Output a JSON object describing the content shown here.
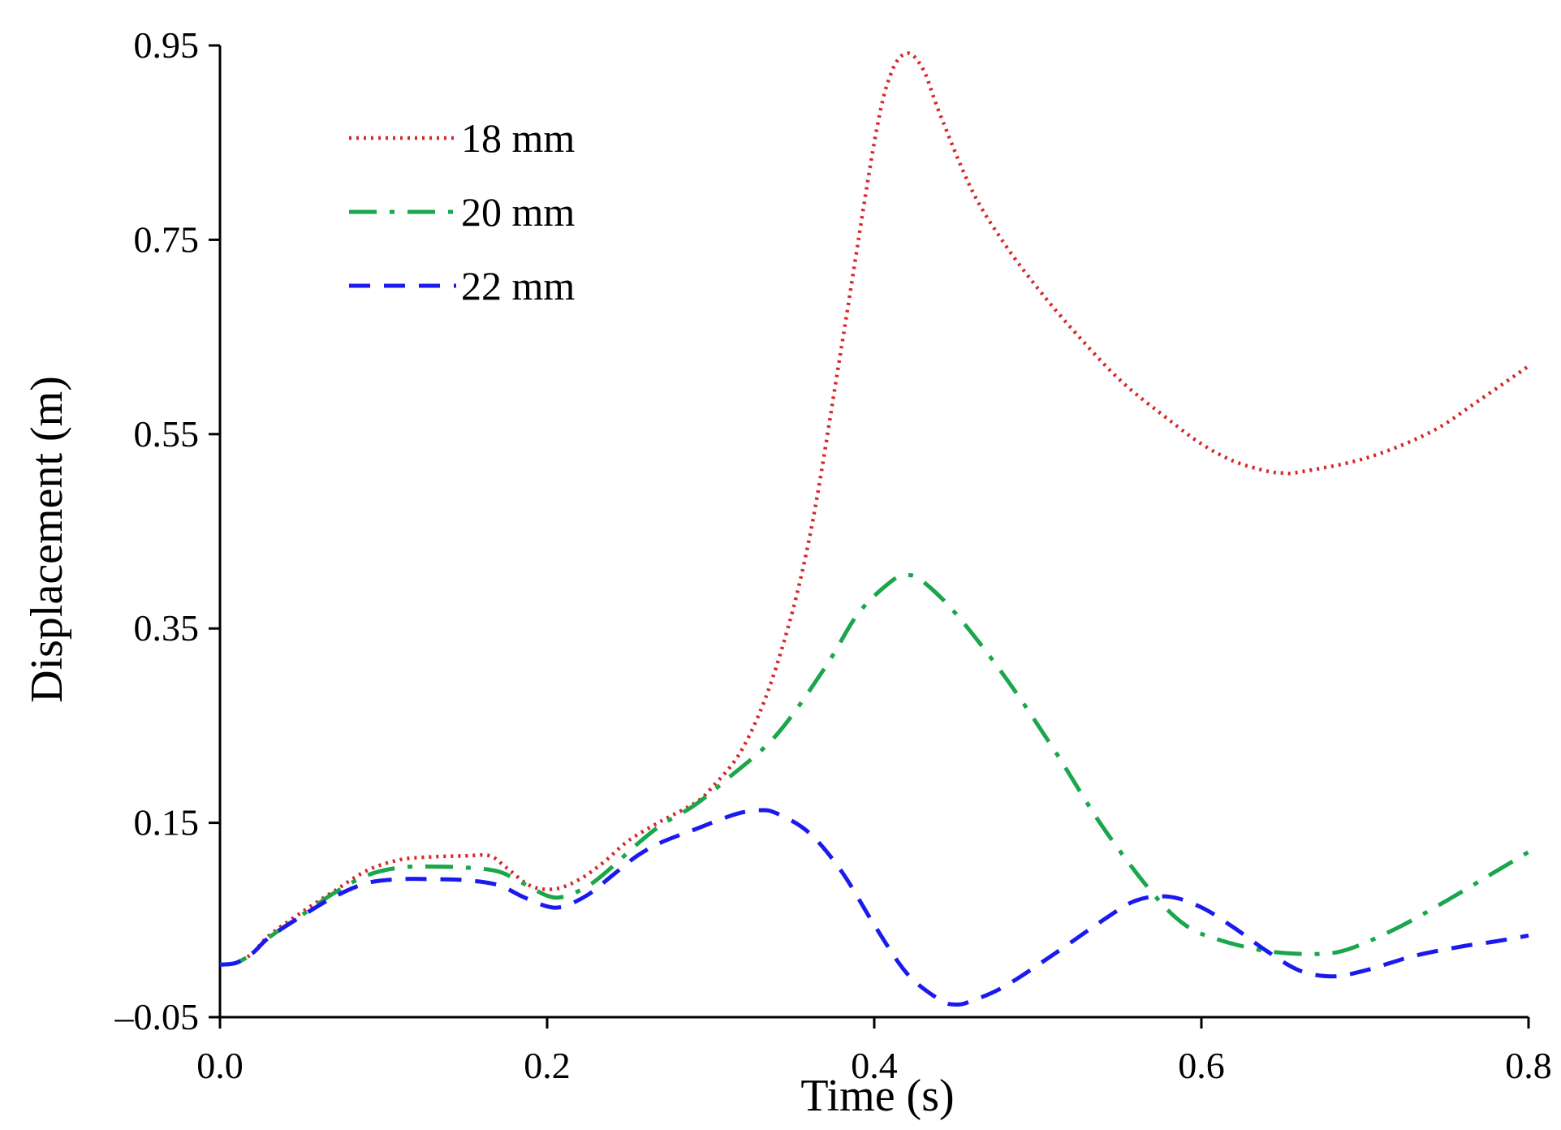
{
  "chart_data": {
    "type": "line",
    "title": "",
    "xlabel": "Time (s)",
    "ylabel": "Displacement (m)",
    "xlim": [
      0.0,
      0.8
    ],
    "ylim": [
      -0.05,
      0.95
    ],
    "x_ticks": [
      0.0,
      0.2,
      0.4,
      0.6,
      0.8
    ],
    "x_tick_labels": [
      "0.0",
      "0.2",
      "0.4",
      "0.6",
      "0.8"
    ],
    "y_ticks": [
      -0.05,
      0.15,
      0.35,
      0.55,
      0.75,
      0.95
    ],
    "y_tick_labels": [
      "–0.05",
      "0.15",
      "0.35",
      "0.55",
      "0.75",
      "0.95"
    ],
    "grid": false,
    "legend_position": "top-left",
    "series": [
      {
        "name": "18 mm",
        "color": "#d62728",
        "dash": "dotted",
        "points": [
          [
            0.0,
            0.004
          ],
          [
            0.01,
            0.006
          ],
          [
            0.02,
            0.016
          ],
          [
            0.03,
            0.034
          ],
          [
            0.05,
            0.058
          ],
          [
            0.07,
            0.08
          ],
          [
            0.09,
            0.101
          ],
          [
            0.11,
            0.112
          ],
          [
            0.13,
            0.115
          ],
          [
            0.15,
            0.116
          ],
          [
            0.165,
            0.116
          ],
          [
            0.175,
            0.104
          ],
          [
            0.19,
            0.085
          ],
          [
            0.205,
            0.082
          ],
          [
            0.22,
            0.092
          ],
          [
            0.235,
            0.11
          ],
          [
            0.25,
            0.132
          ],
          [
            0.27,
            0.152
          ],
          [
            0.29,
            0.17
          ],
          [
            0.3,
            0.185
          ],
          [
            0.32,
            0.228
          ],
          [
            0.34,
            0.31
          ],
          [
            0.36,
            0.44
          ],
          [
            0.38,
            0.64
          ],
          [
            0.4,
            0.85
          ],
          [
            0.41,
            0.92
          ],
          [
            0.42,
            0.942
          ],
          [
            0.43,
            0.925
          ],
          [
            0.44,
            0.88
          ],
          [
            0.46,
            0.8
          ],
          [
            0.48,
            0.745
          ],
          [
            0.5,
            0.7
          ],
          [
            0.52,
            0.66
          ],
          [
            0.55,
            0.606
          ],
          [
            0.58,
            0.565
          ],
          [
            0.6,
            0.54
          ],
          [
            0.62,
            0.522
          ],
          [
            0.64,
            0.512
          ],
          [
            0.65,
            0.51
          ],
          [
            0.66,
            0.511
          ],
          [
            0.7,
            0.525
          ],
          [
            0.74,
            0.552
          ],
          [
            0.77,
            0.585
          ],
          [
            0.8,
            0.62
          ]
        ]
      },
      {
        "name": "20 mm",
        "color": "#1aa64b",
        "dash": "dashdot",
        "points": [
          [
            0.0,
            0.004
          ],
          [
            0.01,
            0.006
          ],
          [
            0.02,
            0.016
          ],
          [
            0.03,
            0.032
          ],
          [
            0.05,
            0.055
          ],
          [
            0.07,
            0.078
          ],
          [
            0.09,
            0.096
          ],
          [
            0.11,
            0.104
          ],
          [
            0.13,
            0.105
          ],
          [
            0.15,
            0.104
          ],
          [
            0.17,
            0.1
          ],
          [
            0.185,
            0.088
          ],
          [
            0.2,
            0.075
          ],
          [
            0.21,
            0.074
          ],
          [
            0.225,
            0.085
          ],
          [
            0.24,
            0.105
          ],
          [
            0.255,
            0.128
          ],
          [
            0.27,
            0.148
          ],
          [
            0.29,
            0.168
          ],
          [
            0.31,
            0.195
          ],
          [
            0.34,
            0.24
          ],
          [
            0.37,
            0.31
          ],
          [
            0.39,
            0.365
          ],
          [
            0.41,
            0.398
          ],
          [
            0.42,
            0.405
          ],
          [
            0.43,
            0.398
          ],
          [
            0.45,
            0.365
          ],
          [
            0.48,
            0.3
          ],
          [
            0.51,
            0.225
          ],
          [
            0.54,
            0.145
          ],
          [
            0.57,
            0.078
          ],
          [
            0.59,
            0.045
          ],
          [
            0.61,
            0.03
          ],
          [
            0.64,
            0.018
          ],
          [
            0.67,
            0.015
          ],
          [
            0.69,
            0.02
          ],
          [
            0.72,
            0.042
          ],
          [
            0.75,
            0.07
          ],
          [
            0.78,
            0.1
          ],
          [
            0.8,
            0.12
          ]
        ]
      },
      {
        "name": "22 mm",
        "color": "#1a1aee",
        "dash": "dashed",
        "points": [
          [
            0.0,
            0.004
          ],
          [
            0.01,
            0.006
          ],
          [
            0.02,
            0.016
          ],
          [
            0.03,
            0.032
          ],
          [
            0.05,
            0.054
          ],
          [
            0.07,
            0.074
          ],
          [
            0.09,
            0.088
          ],
          [
            0.11,
            0.092
          ],
          [
            0.13,
            0.092
          ],
          [
            0.15,
            0.091
          ],
          [
            0.17,
            0.086
          ],
          [
            0.185,
            0.074
          ],
          [
            0.2,
            0.064
          ],
          [
            0.21,
            0.064
          ],
          [
            0.225,
            0.076
          ],
          [
            0.24,
            0.096
          ],
          [
            0.255,
            0.116
          ],
          [
            0.27,
            0.13
          ],
          [
            0.29,
            0.143
          ],
          [
            0.31,
            0.156
          ],
          [
            0.32,
            0.161
          ],
          [
            0.33,
            0.163
          ],
          [
            0.34,
            0.16
          ],
          [
            0.36,
            0.14
          ],
          [
            0.38,
            0.1
          ],
          [
            0.4,
            0.045
          ],
          [
            0.42,
            -0.005
          ],
          [
            0.44,
            -0.032
          ],
          [
            0.45,
            -0.037
          ],
          [
            0.46,
            -0.033
          ],
          [
            0.48,
            -0.018
          ],
          [
            0.51,
            0.015
          ],
          [
            0.54,
            0.05
          ],
          [
            0.56,
            0.07
          ],
          [
            0.58,
            0.074
          ],
          [
            0.6,
            0.063
          ],
          [
            0.62,
            0.042
          ],
          [
            0.64,
            0.018
          ],
          [
            0.66,
            -0.002
          ],
          [
            0.68,
            -0.008
          ],
          [
            0.7,
            -0.002
          ],
          [
            0.73,
            0.013
          ],
          [
            0.76,
            0.023
          ],
          [
            0.78,
            0.028
          ],
          [
            0.8,
            0.034
          ]
        ]
      }
    ]
  }
}
